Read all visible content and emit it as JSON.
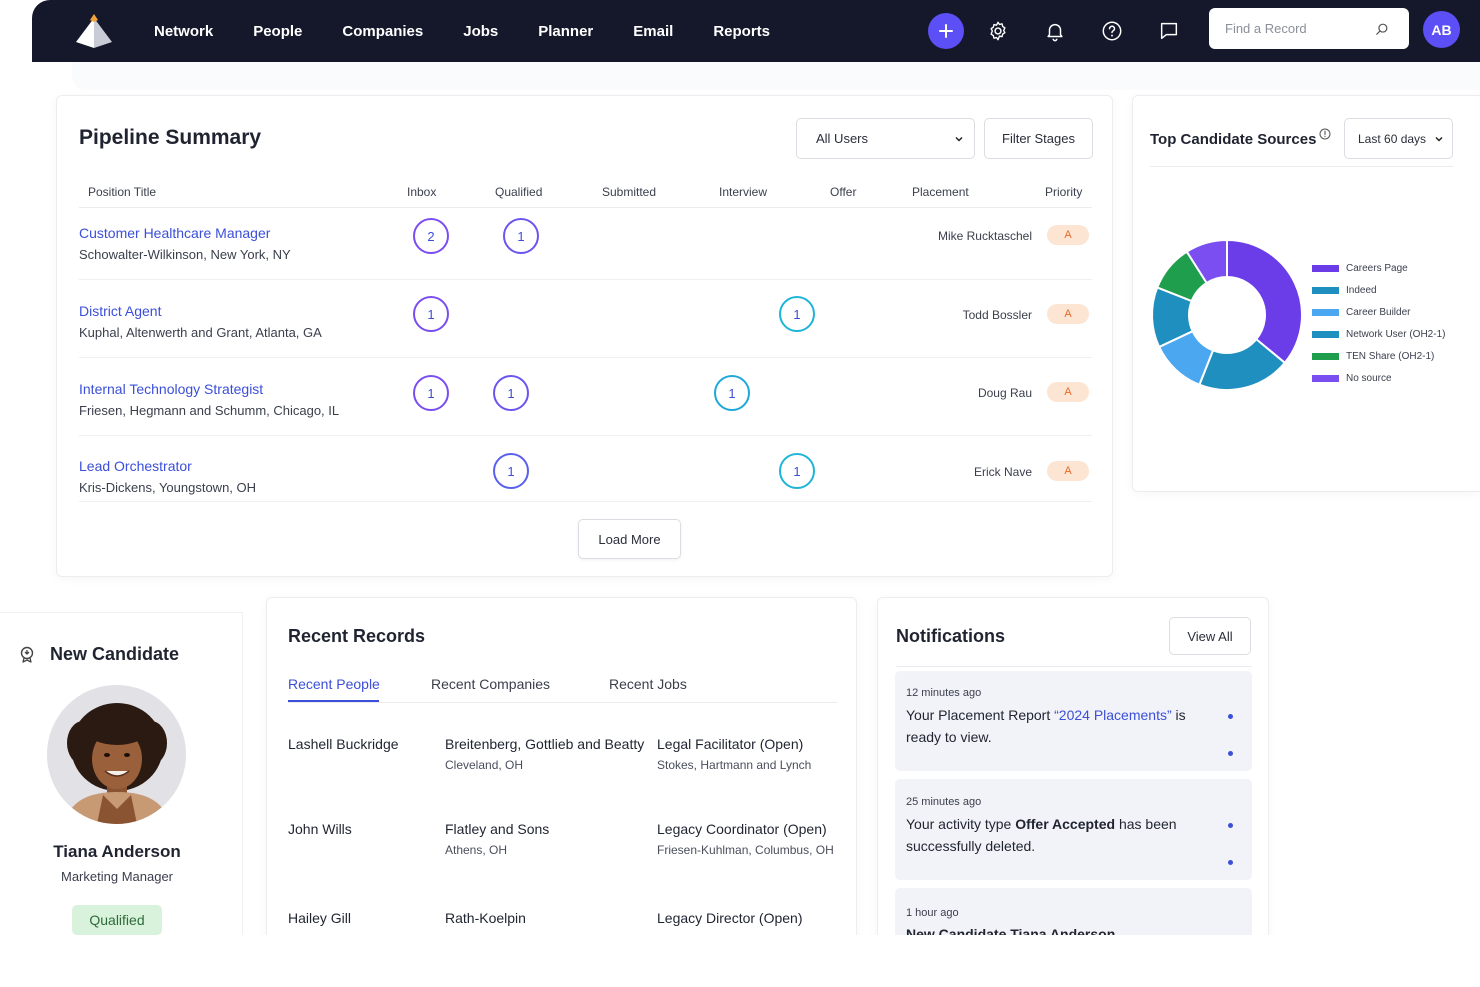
{
  "nav": {
    "links": [
      "Network",
      "People",
      "Companies",
      "Jobs",
      "Planner",
      "Email",
      "Reports"
    ],
    "search_placeholder": "Find a Record",
    "avatar_initials": "AB",
    "accent": "#5b4ff5",
    "bg": "#14182a"
  },
  "pipeline": {
    "title": "Pipeline Summary",
    "user_filter": "All Users",
    "filter_button": "Filter Stages",
    "columns": {
      "position": "Position Title",
      "stages": [
        "Inbox",
        "Qualified",
        "Submitted",
        "Interview",
        "Offer",
        "Placement"
      ],
      "priority": "Priority"
    },
    "rows": [
      {
        "title": "Customer Healthcare Manager",
        "company": "Schowalter-Wilkinson, New York, NY",
        "recruiter": "Mike Rucktaschel",
        "priority": "A",
        "nodes": [
          {
            "stage": "Inbox",
            "count": "2"
          },
          {
            "stage": "Qualified",
            "count": "1"
          }
        ]
      },
      {
        "title": "District Agent",
        "company": "Kuphal, Altenwerth and Grant, Atlanta, GA",
        "recruiter": "Todd Bossler",
        "priority": "A",
        "nodes": [
          {
            "stage": "Inbox",
            "count": "1"
          },
          {
            "stage": "Offer",
            "count": "1"
          }
        ]
      },
      {
        "title": "Internal Technology Strategist",
        "company": "Friesen, Hegmann and Schumm, Chicago, IL",
        "recruiter": "Doug Rau",
        "priority": "A",
        "nodes": [
          {
            "stage": "Inbox",
            "count": "1"
          },
          {
            "stage": "Qualified",
            "count": "1"
          },
          {
            "stage": "Interview",
            "count": "1"
          }
        ]
      },
      {
        "title": "Lead Orchestrator",
        "company": "Kris-Dickens, Youngstown, OH",
        "recruiter": "Erick Nave",
        "priority": "A",
        "nodes": [
          {
            "stage": "Qualified",
            "count": "1"
          },
          {
            "stage": "Offer",
            "count": "1"
          }
        ]
      }
    ],
    "load_more": "Load More"
  },
  "sources": {
    "title": "Top Candidate Sources",
    "range": "Last 60 days",
    "chart_data": {
      "type": "pie",
      "categories": [
        "Careers Page",
        "Indeed",
        "Career Builder",
        "Network User (OH2-1)",
        "TEN Share (OH2-1)",
        "No source"
      ],
      "values": [
        36,
        20,
        12,
        13,
        10,
        9
      ],
      "colors": [
        "#6a3de8",
        "#1f8fbf",
        "#4aa7f0",
        "#1f8fbf",
        "#1f9e4e",
        "#7a4ef0"
      ]
    }
  },
  "candidate": {
    "heading": "New Candidate",
    "name": "Tiana Anderson",
    "role": "Marketing Manager",
    "status": "Qualified"
  },
  "records": {
    "title": "Recent Records",
    "tabs": [
      "Recent People",
      "Recent Companies",
      "Recent Jobs"
    ],
    "rows": [
      {
        "person": "Lashell Buckridge",
        "company": "Breitenberg, Gottlieb and Beatty",
        "company_loc": "Cleveland, OH",
        "job": "Legal Facilitator (Open)",
        "job_co": "Stokes, Hartmann and Lynch"
      },
      {
        "person": "John Wills",
        "company": "Flatley and Sons",
        "company_loc": "Athens, OH",
        "job": "Legacy Coordinator (Open)",
        "job_co": "Friesen-Kuhlman, Columbus, OH"
      },
      {
        "person": "Hailey Gill",
        "company": "Rath-Koelpin",
        "company_loc": "",
        "job": "Legacy Director (Open)",
        "job_co": ""
      }
    ]
  },
  "notifications": {
    "title": "Notifications",
    "view_all": "View All",
    "items": [
      {
        "time": "12 minutes ago",
        "pre": "Your Placement Report ",
        "link": "“2024 Placements”",
        "post": " is ready to view."
      },
      {
        "time": "25 minutes ago",
        "pre": "Your activity type ",
        "bold": "Offer Accepted",
        "post": " has been successfully deleted."
      },
      {
        "time": "1 hour ago",
        "pre": "",
        "bold": "New Candidate Tiana Anderson",
        "post": ""
      }
    ]
  }
}
